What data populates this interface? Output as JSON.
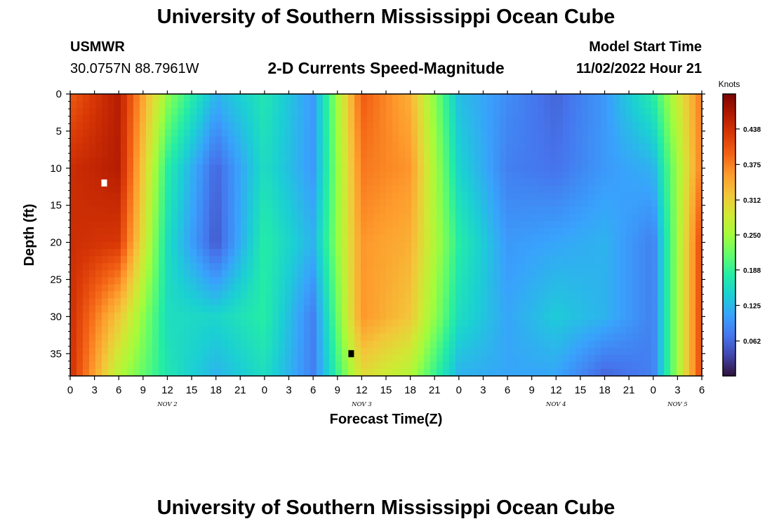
{
  "page": {
    "title": "University of Southern Mississippi Ocean Cube",
    "station": "USMWR",
    "coords": "30.0757N  88.7961W",
    "subtitle": "2-D Currents Speed-Magnitude",
    "model_start_label": "Model Start Time",
    "model_start_value": "11/02/2022 Hour 21",
    "footer_title": "University of Southern Mississippi Ocean Cube"
  },
  "colors": {
    "colormap": [
      "#30123b",
      "#4145ab",
      "#4675ed",
      "#39a2fc",
      "#1bcfd4",
      "#24eca6",
      "#61fc6c",
      "#a4fc3b",
      "#d1e834",
      "#f3c63a",
      "#fe9b2d",
      "#f36315",
      "#d93806",
      "#b11901",
      "#7a0402"
    ],
    "marker_hi": "#ffffff",
    "marker_lo": "#000000"
  },
  "chart_data": {
    "type": "heatmap",
    "title": "2-D Currents Speed-Magnitude",
    "xlabel": "Forecast Time(Z)",
    "ylabel": "Depth (ft)",
    "xlim": [
      0,
      78
    ],
    "ylim": [
      38,
      0
    ],
    "x_units": "hours from 11/02/2022 00Z",
    "x_ticks": [
      0,
      3,
      6,
      9,
      12,
      15,
      18,
      21,
      24,
      27,
      30,
      33,
      36,
      39,
      42,
      45,
      48,
      51,
      54,
      57,
      60,
      63,
      66,
      69,
      72,
      75,
      78
    ],
    "x_tick_labels": [
      "0",
      "3",
      "6",
      "9",
      "12",
      "15",
      "18",
      "21",
      "0",
      "3",
      "6",
      "9",
      "12",
      "15",
      "18",
      "21",
      "0",
      "3",
      "6",
      "9",
      "12",
      "15",
      "18",
      "21",
      "0",
      "3",
      "6"
    ],
    "day_labels": [
      {
        "x": 12,
        "text": "NOV 2"
      },
      {
        "x": 36,
        "text": "NOV 3"
      },
      {
        "x": 60,
        "text": "NOV 4"
      },
      {
        "x": 75,
        "text": "NOV 5"
      }
    ],
    "y_ticks": [
      0,
      5,
      10,
      15,
      20,
      25,
      30,
      35
    ],
    "colorbar": {
      "label": "Knots",
      "range": [
        0,
        0.5
      ],
      "ticks": [
        0.062,
        0.125,
        0.188,
        0.25,
        0.312,
        0.375,
        0.438
      ]
    },
    "grid": {
      "x_hours": [
        0,
        6,
        12,
        18,
        24,
        30,
        36,
        42,
        48,
        54,
        60,
        66,
        72,
        78
      ],
      "depths_ft": [
        0,
        10,
        20,
        30,
        38
      ],
      "speed_knots": [
        [
          0.4,
          0.46,
          0.24,
          0.12,
          0.17,
          0.1,
          0.4,
          0.34,
          0.13,
          0.09,
          0.06,
          0.1,
          0.18,
          0.38
        ],
        [
          0.44,
          0.46,
          0.18,
          0.06,
          0.16,
          0.1,
          0.38,
          0.36,
          0.15,
          0.08,
          0.07,
          0.1,
          0.12,
          0.38
        ],
        [
          0.44,
          0.43,
          0.16,
          0.05,
          0.18,
          0.12,
          0.36,
          0.34,
          0.18,
          0.1,
          0.11,
          0.12,
          0.08,
          0.42
        ],
        [
          0.44,
          0.32,
          0.16,
          0.15,
          0.18,
          0.08,
          0.36,
          0.32,
          0.16,
          0.11,
          0.14,
          0.12,
          0.08,
          0.42
        ],
        [
          0.44,
          0.26,
          0.17,
          0.12,
          0.16,
          0.08,
          0.3,
          0.26,
          0.12,
          0.11,
          0.11,
          0.06,
          0.08,
          0.42
        ]
      ]
    },
    "markers": [
      {
        "x": 4.2,
        "depth": 12,
        "color": "white"
      },
      {
        "x": 34.7,
        "depth": 35,
        "color": "black"
      }
    ]
  }
}
